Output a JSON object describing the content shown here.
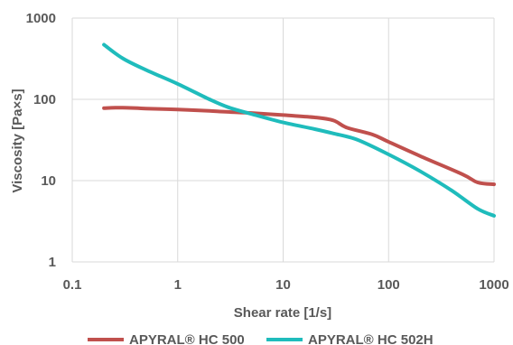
{
  "chart_data": {
    "type": "line",
    "title": "",
    "xlabel": "Shear rate [1/s]",
    "ylabel": "Viscosity [Pa×s]",
    "x_scale": "log",
    "y_scale": "log",
    "xlim": [
      0.1,
      1000
    ],
    "ylim": [
      1,
      1000
    ],
    "x_ticks": [
      0.1,
      1,
      10,
      100,
      1000
    ],
    "x_tick_labels": [
      "0.1",
      "1",
      "10",
      "100",
      "1000"
    ],
    "y_ticks": [
      1,
      10,
      100,
      1000
    ],
    "y_tick_labels": [
      "1",
      "10",
      "100",
      "1000"
    ],
    "grid": true,
    "legend_position": "bottom",
    "series": [
      {
        "name": "APYRAL® HC 500",
        "color": "#c0504d",
        "x": [
          0.2,
          0.3,
          0.5,
          1,
          2,
          3,
          5,
          10,
          20,
          30,
          40,
          70,
          100,
          200,
          500,
          700,
          1000
        ],
        "y": [
          78,
          79,
          77,
          75,
          72,
          70,
          68,
          64,
          60,
          55,
          45,
          37,
          30,
          20,
          12,
          9.5,
          9
        ]
      },
      {
        "name": "APYRAL® HC 502H",
        "color": "#1fbcbc",
        "x": [
          0.2,
          0.3,
          0.5,
          1,
          2,
          3,
          5,
          10,
          20,
          30,
          50,
          100,
          200,
          400,
          700,
          1000
        ],
        "y": [
          470,
          320,
          230,
          155,
          100,
          80,
          66,
          52,
          43,
          38,
          32,
          21,
          13,
          7.5,
          4.5,
          3.7
        ]
      }
    ]
  }
}
